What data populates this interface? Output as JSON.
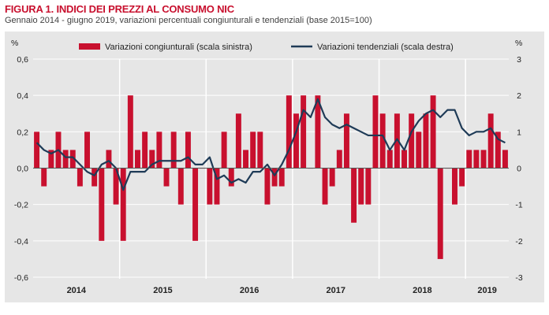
{
  "header": {
    "figure_label": "FIGURA 1.",
    "title": "INDICI DEI PREZZI AL CONSUMO NIC",
    "subtitle": "Gennaio 2014 - giugno 2019, variazioni percentuali congiunturali e tendenziali (base 2015=100)"
  },
  "colors": {
    "bars": "#c8102e",
    "line": "#1f3b57",
    "plot_background": "#e6e6e6",
    "grid": "#ffffff"
  },
  "chart_data": {
    "type": "bar+line",
    "left_axis": {
      "unit_label": "%",
      "ylim": [
        -0.6,
        0.6
      ],
      "ticks": [
        "-0,6",
        "-0,4",
        "-0,2",
        "0,0",
        "0,2",
        "0,4",
        "0,6"
      ]
    },
    "right_axis": {
      "unit_label": "%",
      "ylim": [
        -3,
        3
      ],
      "ticks": [
        "-3",
        "-2",
        "-1",
        "0",
        "1",
        "2",
        "3"
      ]
    },
    "years": [
      "2014",
      "2015",
      "2016",
      "2017",
      "2018",
      "2019"
    ],
    "months_per_year": 12,
    "grid": "horizontal gridlines and vertical year separators in white",
    "legend_placement": "top",
    "series": [
      {
        "name": "Variazioni congiunturali (scala sinistra)",
        "type": "bar",
        "axis": "left",
        "values": [
          0.2,
          -0.1,
          0.1,
          0.2,
          0.1,
          0.1,
          -0.1,
          0.2,
          -0.1,
          -0.4,
          0.1,
          -0.2,
          -0.4,
          0.4,
          0.1,
          0.2,
          0.1,
          0.2,
          -0.1,
          0.2,
          -0.2,
          0.2,
          -0.4,
          0.0,
          -0.2,
          -0.2,
          0.2,
          -0.1,
          0.3,
          0.1,
          0.2,
          0.2,
          -0.2,
          -0.1,
          -0.1,
          0.4,
          0.3,
          0.4,
          0.0,
          0.4,
          -0.2,
          -0.1,
          0.1,
          0.3,
          -0.3,
          -0.2,
          -0.2,
          0.4,
          0.3,
          0.1,
          0.3,
          0.1,
          0.3,
          0.2,
          0.3,
          0.4,
          -0.5,
          0.0,
          -0.2,
          -0.1,
          0.1,
          0.1,
          0.1,
          0.3,
          0.2,
          0.1
        ]
      },
      {
        "name": "Variazioni tendenziali (scala destra)",
        "type": "line",
        "axis": "right",
        "values": [
          0.7,
          0.5,
          0.4,
          0.5,
          0.3,
          0.3,
          0.1,
          -0.1,
          -0.2,
          0.1,
          0.2,
          0.0,
          -0.6,
          -0.1,
          -0.1,
          -0.1,
          0.1,
          0.2,
          0.2,
          0.2,
          0.2,
          0.3,
          0.1,
          0.1,
          0.3,
          -0.3,
          -0.2,
          -0.4,
          -0.3,
          -0.4,
          -0.1,
          -0.1,
          0.1,
          -0.2,
          0.1,
          0.5,
          1.0,
          1.6,
          1.4,
          1.9,
          1.4,
          1.2,
          1.1,
          1.2,
          1.1,
          1.0,
          0.9,
          0.9,
          0.9,
          0.5,
          0.8,
          0.5,
          1.0,
          1.3,
          1.5,
          1.6,
          1.4,
          1.6,
          1.6,
          1.1,
          0.9,
          1.0,
          1.0,
          1.1,
          0.8,
          0.7
        ]
      }
    ]
  }
}
